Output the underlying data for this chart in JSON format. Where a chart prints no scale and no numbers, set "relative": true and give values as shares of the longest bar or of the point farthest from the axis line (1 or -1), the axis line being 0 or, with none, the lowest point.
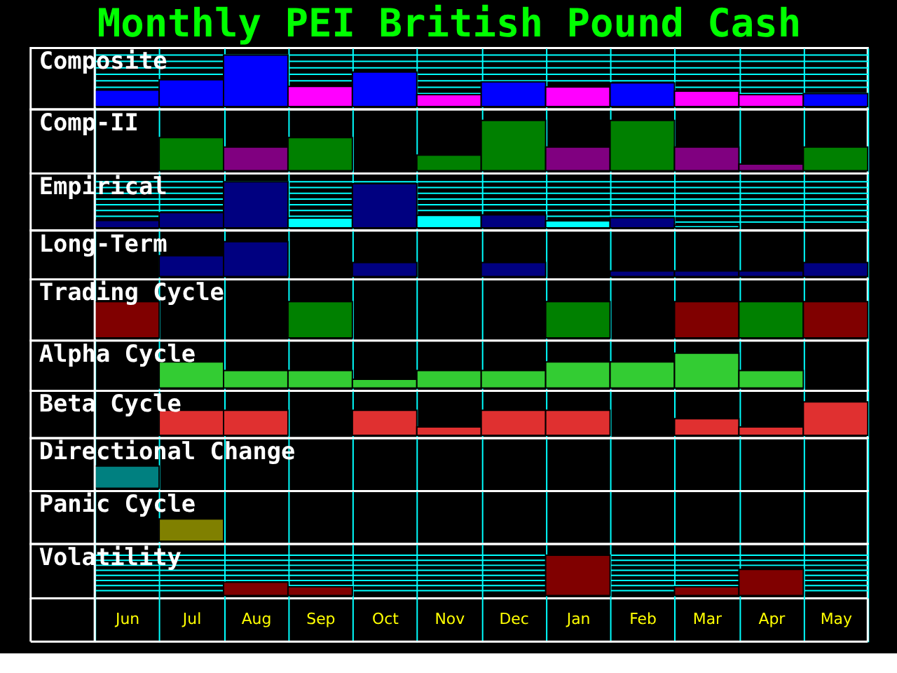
{
  "chart_data": [
    {
      "type": "bar",
      "title": "Monthly PEI British Pound Cash",
      "ylabel": "Composite",
      "relative": true,
      "grid": true,
      "tick_labels": false,
      "categories": [
        "Jun",
        "Jul",
        "Aug",
        "Sep",
        "Oct",
        "Nov",
        "Dec",
        "Jan",
        "Feb",
        "Mar",
        "Apr",
        "May"
      ],
      "values": [
        0.32,
        0.52,
        1,
        0.39,
        0.67,
        0.23,
        0.48,
        0.38,
        0.46,
        0.3,
        0.23,
        0.25
      ],
      "colors": [
        "#0000ff",
        "#0000ff",
        "#0000ff",
        "#ff00ff",
        "#0000ff",
        "#ff00ff",
        "#0000ff",
        "#ff00ff",
        "#0000ff",
        "#ff00ff",
        "#ff00ff",
        "#0000ff"
      ]
    },
    {
      "type": "bar",
      "ylabel": "Comp-II",
      "relative": true,
      "grid": "x",
      "tick_labels": false,
      "categories": [
        "Jun",
        "Jul",
        "Aug",
        "Sep",
        "Oct",
        "Nov",
        "Dec",
        "Jan",
        "Feb",
        "Mar",
        "Apr",
        "May"
      ],
      "values": [
        null,
        0.66,
        0.47,
        0.66,
        null,
        0.31,
        1,
        0.47,
        1,
        0.47,
        0.13,
        0.47
      ],
      "colors": [
        null,
        "#008000",
        "#800080",
        "#008000",
        null,
        "#008000",
        "#008000",
        "#800080",
        "#008000",
        "#800080",
        "#800080",
        "#008000"
      ]
    },
    {
      "type": "bar",
      "ylabel": "Empirical",
      "relative": true,
      "grid": true,
      "tick_labels": false,
      "categories": [
        "Jun",
        "Jul",
        "Aug",
        "Sep",
        "Oct",
        "Nov",
        "Dec",
        "Jan",
        "Feb",
        "Mar",
        "Apr",
        "May"
      ],
      "values": [
        0.16,
        0.33,
        1,
        0.21,
        0.96,
        0.27,
        0.28,
        0.15,
        0.22,
        0.05,
        null,
        null
      ],
      "colors": [
        "#000080",
        "#000080",
        "#000080",
        "#00ffff",
        "#000080",
        "#00ffff",
        "#000080",
        "#00ffff",
        "#000080",
        "#00ffff",
        null,
        null
      ]
    },
    {
      "type": "bar",
      "ylabel": "Long-Term",
      "relative": true,
      "grid": "x",
      "tick_labels": false,
      "categories": [
        "Jun",
        "Jul",
        "Aug",
        "Sep",
        "Oct",
        "Nov",
        "Dec",
        "Jan",
        "Feb",
        "Mar",
        "Apr",
        "May"
      ],
      "values": [
        null,
        0.6,
        1,
        null,
        0.4,
        null,
        0.4,
        null,
        0.16,
        0.16,
        0.16,
        0.4
      ],
      "colors": [
        null,
        "#000080",
        "#000080",
        null,
        "#000080",
        null,
        "#000080",
        null,
        "#000080",
        "#000080",
        "#000080",
        "#000080"
      ]
    },
    {
      "type": "bar",
      "ylabel": "Trading Cycle",
      "relative": true,
      "grid": "x",
      "tick_labels": false,
      "categories": [
        "Jun",
        "Jul",
        "Aug",
        "Sep",
        "Oct",
        "Nov",
        "Dec",
        "Jan",
        "Feb",
        "Mar",
        "Apr",
        "May"
      ],
      "values": [
        1,
        null,
        null,
        1,
        null,
        null,
        null,
        1,
        null,
        1,
        1,
        1
      ],
      "colors": [
        "#800000",
        null,
        null,
        "#008000",
        null,
        null,
        null,
        "#008000",
        null,
        "#800000",
        "#008000",
        "#800000"
      ]
    },
    {
      "type": "bar",
      "ylabel": "Alpha Cycle",
      "relative": true,
      "grid": "x",
      "tick_labels": false,
      "categories": [
        "Jun",
        "Jul",
        "Aug",
        "Sep",
        "Oct",
        "Nov",
        "Dec",
        "Jan",
        "Feb",
        "Mar",
        "Apr",
        "May"
      ],
      "values": [
        null,
        0.75,
        0.5,
        0.5,
        0.25,
        0.5,
        0.5,
        0.75,
        0.75,
        1,
        0.5,
        null
      ],
      "colors": [
        null,
        "#33cc33",
        "#33cc33",
        "#33cc33",
        "#33cc33",
        "#33cc33",
        "#33cc33",
        "#33cc33",
        "#33cc33",
        "#33cc33",
        "#33cc33",
        null
      ]
    },
    {
      "type": "bar",
      "ylabel": "Beta Cycle",
      "relative": true,
      "grid": "x",
      "tick_labels": false,
      "categories": [
        "Jun",
        "Jul",
        "Aug",
        "Sep",
        "Oct",
        "Nov",
        "Dec",
        "Jan",
        "Feb",
        "Mar",
        "Apr",
        "May"
      ],
      "values": [
        null,
        0.75,
        0.75,
        null,
        0.75,
        0.25,
        0.75,
        0.75,
        null,
        0.5,
        0.25,
        1
      ],
      "colors": [
        null,
        "#e03030",
        "#e03030",
        null,
        "#e03030",
        "#e03030",
        "#e03030",
        "#e03030",
        null,
        "#e03030",
        "#e03030",
        "#e03030"
      ]
    },
    {
      "type": "bar",
      "ylabel": "Directional Change",
      "relative": true,
      "grid": "x",
      "tick_labels": false,
      "categories": [
        "Jun",
        "Jul",
        "Aug",
        "Sep",
        "Oct",
        "Nov",
        "Dec",
        "Jan",
        "Feb",
        "Mar",
        "Apr",
        "May"
      ],
      "values": [
        1,
        null,
        null,
        null,
        null,
        null,
        null,
        null,
        null,
        null,
        null,
        null
      ],
      "colors": [
        "#008080",
        null,
        null,
        null,
        null,
        null,
        null,
        null,
        null,
        null,
        null,
        null
      ]
    },
    {
      "type": "bar",
      "ylabel": "Panic Cycle",
      "relative": true,
      "grid": "x",
      "tick_labels": false,
      "categories": [
        "Jun",
        "Jul",
        "Aug",
        "Sep",
        "Oct",
        "Nov",
        "Dec",
        "Jan",
        "Feb",
        "Mar",
        "Apr",
        "May"
      ],
      "values": [
        null,
        1,
        null,
        null,
        null,
        null,
        null,
        null,
        null,
        null,
        null,
        null
      ],
      "colors": [
        null,
        "#808000",
        null,
        null,
        null,
        null,
        null,
        null,
        null,
        null,
        null,
        null
      ]
    },
    {
      "type": "bar",
      "ylabel": "Volatility",
      "relative": true,
      "grid": true,
      "tick_labels": "x",
      "categories": [
        "Jun",
        "Jul",
        "Aug",
        "Sep",
        "Oct",
        "Nov",
        "Dec",
        "Jan",
        "Feb",
        "Mar",
        "Apr",
        "May"
      ],
      "values": [
        null,
        null,
        0.33,
        0.22,
        null,
        null,
        null,
        1,
        null,
        0.22,
        0.65,
        null
      ],
      "colors": [
        null,
        null,
        "#800000",
        "#800000",
        null,
        null,
        null,
        "#800000",
        null,
        "#800000",
        "#800000",
        null
      ]
    }
  ]
}
